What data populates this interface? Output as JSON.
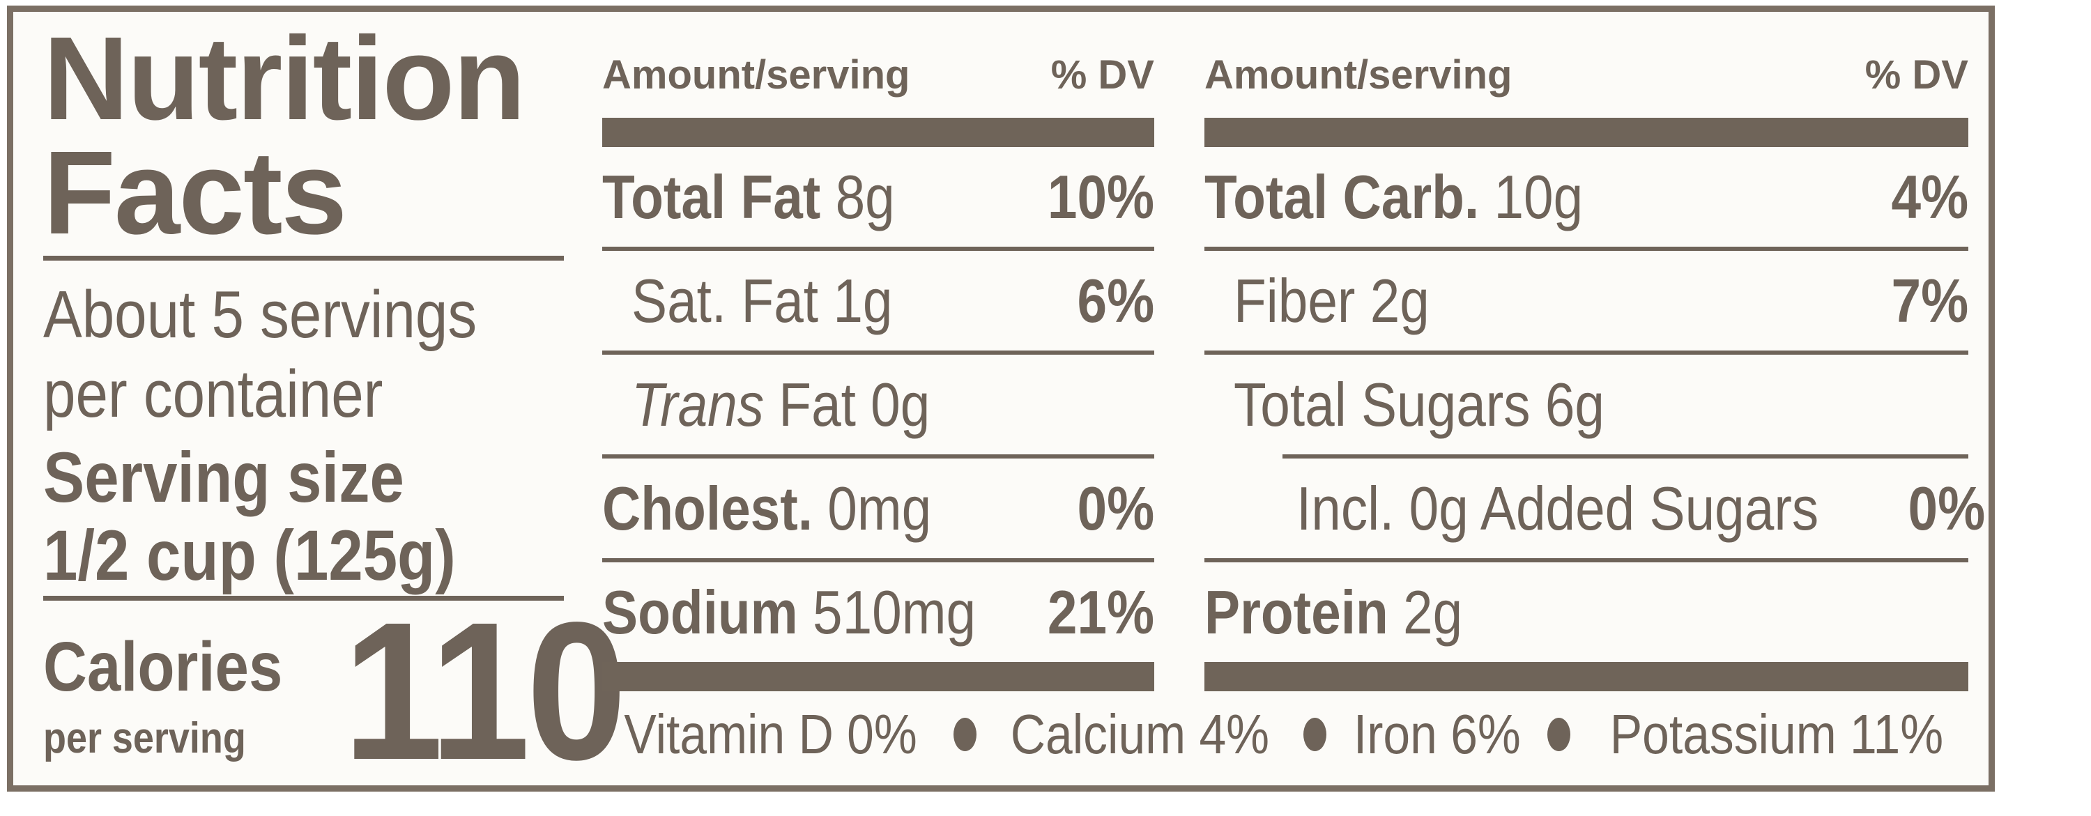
{
  "colors": {
    "ink": "#6e6359",
    "bar": "#6f6459",
    "border": "#7b6f64",
    "panel_bg": "#fcfbf8",
    "page_bg": "#ffffff"
  },
  "panel": {
    "title_line1": "Nutrition",
    "title_line2": "Facts",
    "servings_line1": "About 5 servings",
    "servings_line2": "per container",
    "serving_size_label": "Serving size",
    "serving_size_value": "1/2 cup (125g)",
    "calories_label": "Calories",
    "calories_sublabel": "per serving",
    "calories_value": "110",
    "column_header": {
      "amount": "Amount/serving",
      "dv": "% DV"
    },
    "nutrient_columns": [
      {
        "rows": [
          {
            "segments": [
              {
                "text": "Total Fat ",
                "bold": true
              },
              {
                "text": "8g"
              }
            ],
            "dv": "10%",
            "indent": 0,
            "rule_after": "full"
          },
          {
            "segments": [
              {
                "text": "Sat. Fat 1g"
              }
            ],
            "dv": "6%",
            "indent": 1,
            "rule_after": "full"
          },
          {
            "segments": [
              {
                "text": "Trans",
                "italic": true
              },
              {
                "text": " Fat 0g"
              }
            ],
            "dv": "",
            "indent": 1,
            "rule_after": "full"
          },
          {
            "segments": [
              {
                "text": "Cholest. ",
                "bold": true
              },
              {
                "text": "0mg"
              }
            ],
            "dv": "0%",
            "indent": 0,
            "rule_after": "full"
          },
          {
            "segments": [
              {
                "text": "Sodium ",
                "bold": true
              },
              {
                "text": "510mg"
              }
            ],
            "dv": "21%",
            "indent": 0,
            "rule_after": "none"
          }
        ]
      },
      {
        "rows": [
          {
            "segments": [
              {
                "text": "Total Carb. ",
                "bold": true
              },
              {
                "text": "10g"
              }
            ],
            "dv": "4%",
            "indent": 0,
            "rule_after": "full"
          },
          {
            "segments": [
              {
                "text": "Fiber 2g"
              }
            ],
            "dv": "7%",
            "indent": 1,
            "rule_after": "full"
          },
          {
            "segments": [
              {
                "text": "Total Sugars 6g"
              }
            ],
            "dv": "",
            "indent": 1,
            "rule_after": "indented"
          },
          {
            "segments": [
              {
                "text": "Incl. 0g Added Sugars"
              }
            ],
            "dv": "0%",
            "indent": 2,
            "rule_after": "full"
          },
          {
            "segments": [
              {
                "text": "Protein ",
                "bold": true
              },
              {
                "text": "2g"
              }
            ],
            "dv": "",
            "indent": 0,
            "rule_after": "none"
          }
        ]
      }
    ],
    "micronutrients": [
      {
        "name": "Vitamin D",
        "value": "0%"
      },
      {
        "name": "Calcium",
        "value": "4%"
      },
      {
        "name": "Iron",
        "value": "6%"
      },
      {
        "name": "Potassium",
        "value": "11%"
      }
    ],
    "micronutrient_separator": "bullet"
  }
}
